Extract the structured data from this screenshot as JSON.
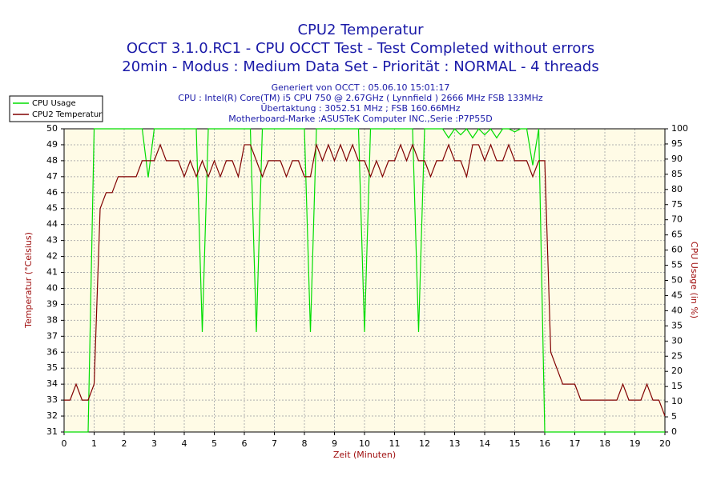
{
  "chart_data": {
    "type": "line",
    "title": "CPU2 Temperatur",
    "subtitles": [
      "OCCT 3.1.0.RC1 - CPU OCCT Test - Test Completed without errors",
      "20min - Modus : Medium Data Set - Priorität : NORMAL - 4 threads"
    ],
    "info": [
      "Generiert von OCCT : 05.06.10 15:01:17",
      "CPU : Intel(R) Core(TM) i5 CPU 750 @ 2.67GHz ( Lynnfield ) 2666 MHz FSB 133MHz",
      "Übertaktung : 3052.51 MHz ; FSB 160.66MHz",
      "Motherboard-Marke :ASUSTeK Computer INC.,Serie :P7P55D"
    ],
    "xlabel": "Zeit (Minuten)",
    "ylabel": "Temperatur (°Celsius)",
    "y2label": "CPU Usage (in %)",
    "x": [
      0,
      0.2,
      0.4,
      0.6,
      0.8,
      1,
      1.2,
      1.4,
      1.6,
      1.8,
      2,
      2.2,
      2.4,
      2.6,
      2.8,
      3,
      3.2,
      3.4,
      3.6,
      3.8,
      4,
      4.2,
      4.4,
      4.6,
      4.8,
      5,
      5.2,
      5.4,
      5.6,
      5.8,
      6,
      6.2,
      6.4,
      6.6,
      6.8,
      7,
      7.2,
      7.4,
      7.6,
      7.8,
      8,
      8.2,
      8.4,
      8.6,
      8.8,
      9,
      9.2,
      9.4,
      9.6,
      9.8,
      10,
      10.2,
      10.4,
      10.6,
      10.8,
      11,
      11.2,
      11.4,
      11.6,
      11.8,
      12,
      12.2,
      12.4,
      12.6,
      12.8,
      13,
      13.2,
      13.4,
      13.6,
      13.8,
      14,
      14.2,
      14.4,
      14.6,
      14.8,
      15,
      15.2,
      15.4,
      15.6,
      15.8,
      16,
      16.2,
      16.4,
      16.6,
      16.8,
      17,
      17.2,
      17.4,
      17.6,
      17.8,
      18,
      18.2,
      18.4,
      18.6,
      18.8,
      19,
      19.2,
      19.4,
      19.6,
      19.8,
      20
    ],
    "series": [
      {
        "name": "CPU Usage",
        "color": "#00dd00",
        "axis": "y2",
        "values": [
          0,
          0,
          0,
          0,
          0,
          100,
          100,
          100,
          100,
          100,
          100,
          100,
          100,
          100,
          84,
          100,
          100,
          100,
          100,
          100,
          100,
          100,
          100,
          33,
          100,
          100,
          100,
          100,
          100,
          100,
          100,
          100,
          33,
          100,
          100,
          100,
          100,
          100,
          100,
          100,
          100,
          33,
          100,
          100,
          100,
          100,
          100,
          100,
          100,
          100,
          33,
          100,
          100,
          100,
          100,
          100,
          100,
          100,
          100,
          33,
          100,
          100,
          100,
          100,
          97,
          100,
          98,
          100,
          97,
          100,
          98,
          100,
          97,
          100,
          100,
          99,
          100,
          100,
          88,
          100,
          0,
          0,
          0,
          0,
          0,
          0,
          0,
          0,
          0,
          0,
          0,
          0,
          0,
          0,
          0,
          0,
          0,
          0,
          0,
          0,
          0
        ]
      },
      {
        "name": "CPU2 Temperatur",
        "color": "#800000",
        "values": [
          33,
          33,
          34,
          33,
          33,
          34,
          45,
          46,
          46,
          47,
          47,
          47,
          47,
          48,
          48,
          48,
          49,
          48,
          48,
          48,
          47,
          48,
          47,
          48,
          47,
          48,
          47,
          48,
          48,
          47,
          49,
          49,
          48,
          47,
          48,
          48,
          48,
          47,
          48,
          48,
          47,
          47,
          49,
          48,
          49,
          48,
          49,
          48,
          49,
          48,
          48,
          47,
          48,
          47,
          48,
          48,
          49,
          48,
          49,
          48,
          48,
          47,
          48,
          48,
          49,
          48,
          48,
          47,
          49,
          49,
          48,
          49,
          48,
          48,
          49,
          48,
          48,
          48,
          47,
          48,
          48,
          36,
          35,
          34,
          34,
          34,
          33,
          33,
          33,
          33,
          33,
          33,
          33,
          34,
          33,
          33,
          33,
          34,
          33,
          33,
          32
        ]
      }
    ],
    "xlim": [
      0,
      20
    ],
    "xticks": [
      0,
      1,
      2,
      3,
      4,
      5,
      6,
      7,
      8,
      9,
      10,
      11,
      12,
      13,
      14,
      15,
      16,
      17,
      18,
      19,
      20
    ],
    "ylim": [
      31,
      50
    ],
    "yticks": [
      31,
      32,
      33,
      34,
      35,
      36,
      37,
      38,
      39,
      40,
      41,
      42,
      43,
      44,
      45,
      46,
      47,
      48,
      49,
      50
    ],
    "y2lim": [
      0,
      100
    ],
    "y2ticks": [
      0,
      5,
      10,
      15,
      20,
      25,
      30,
      35,
      40,
      45,
      50,
      55,
      60,
      65,
      70,
      75,
      80,
      85,
      90,
      95,
      100
    ],
    "grid": true
  }
}
